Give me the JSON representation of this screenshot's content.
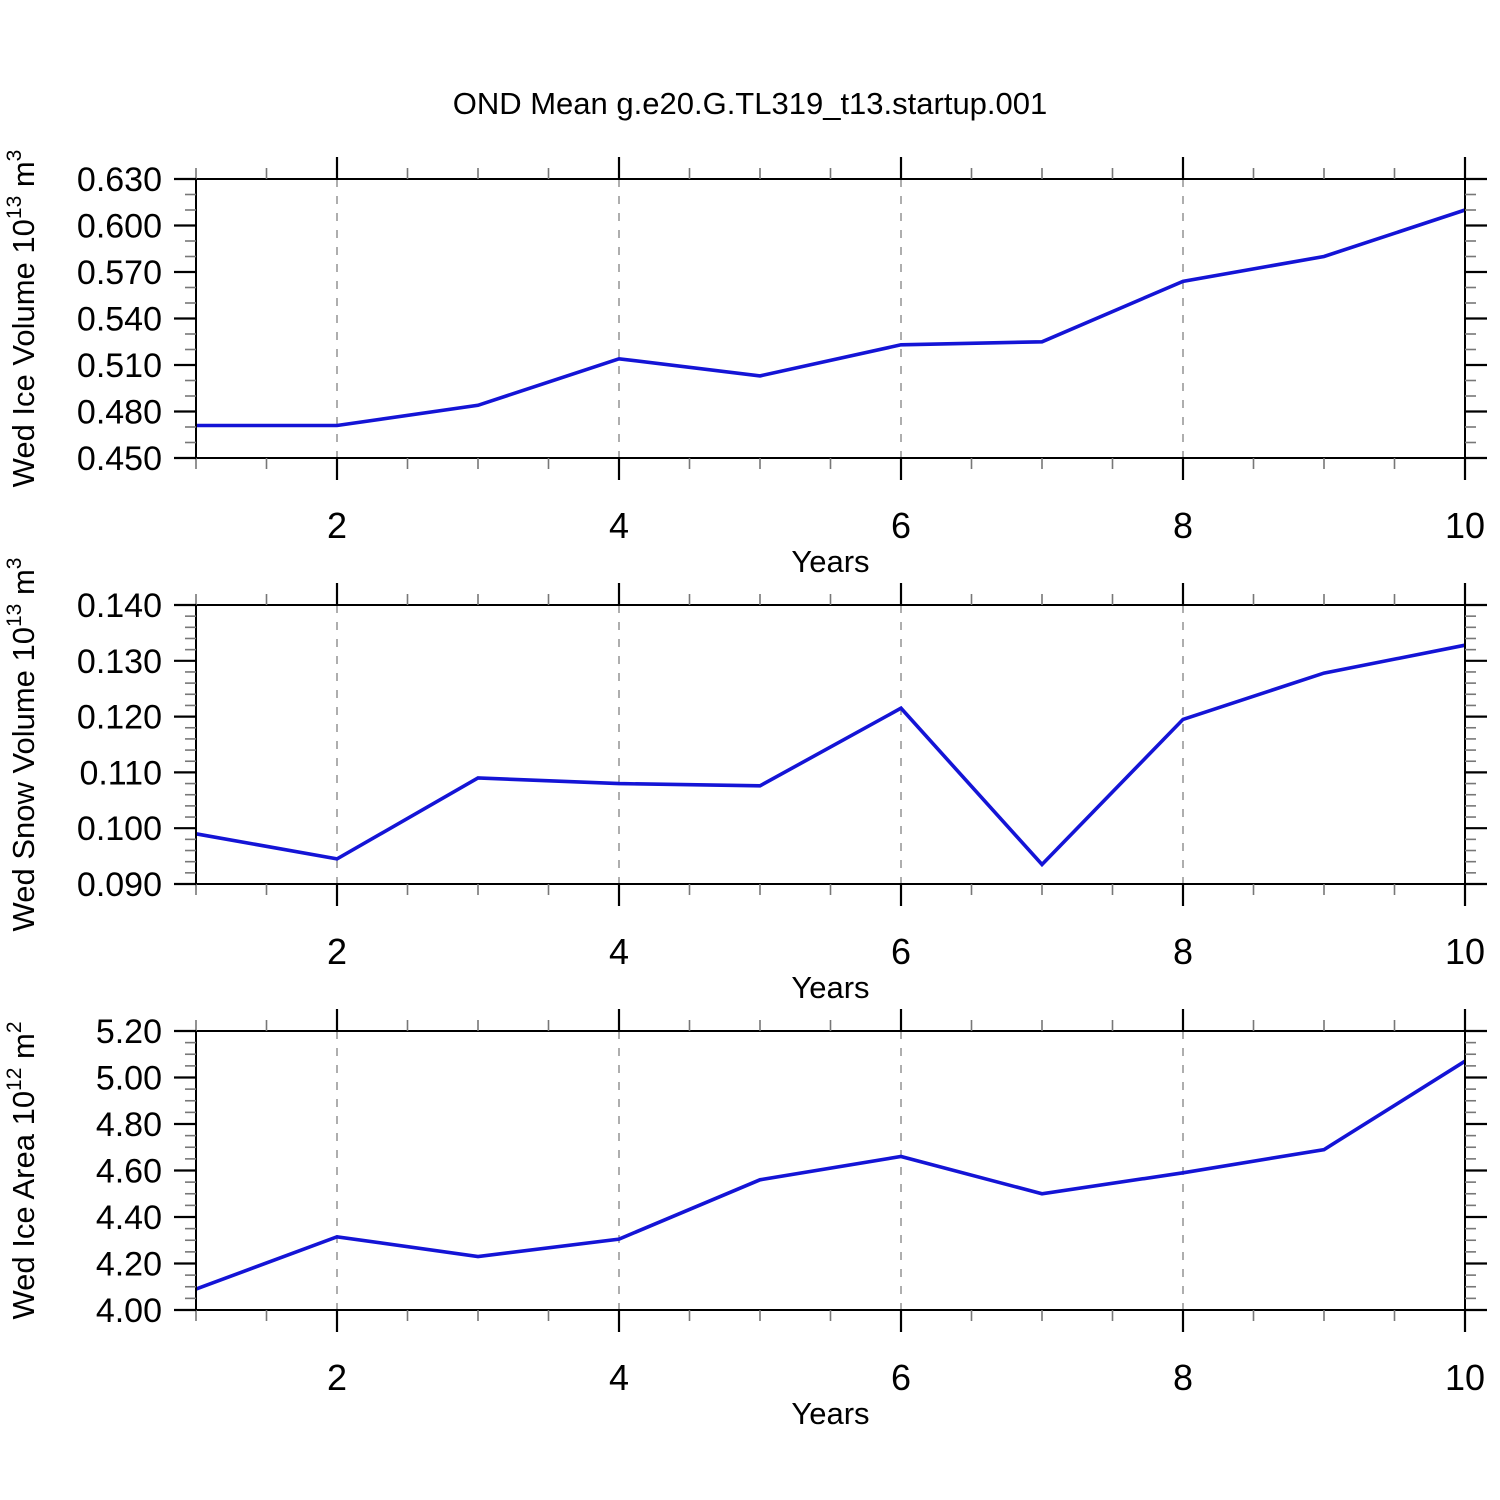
{
  "title": "OND Mean g.e20.G.TL319_t13.startup.001",
  "colors": {
    "background": "#ffffff",
    "line": "#1414d6",
    "axis": "#000000",
    "major_tick": "#000000",
    "minor_tick": "#777777",
    "gridline": "#8c8c8c",
    "text": "#000000"
  },
  "x_axis": {
    "label": "Years",
    "range": [
      1,
      10
    ],
    "major_ticks": [
      2,
      4,
      6,
      8,
      10
    ],
    "tick_labels": [
      "2",
      "4",
      "6",
      "8",
      "10"
    ],
    "minor_step": 0.5,
    "gridlines": [
      2,
      4,
      6,
      8
    ]
  },
  "chart_data": [
    {
      "type": "line",
      "name": "wed-ice-volume",
      "ylabel": "Wed Ice Volume 10^13 m^3",
      "ylabel_segments": [
        {
          "text": "Wed Ice Volume 10",
          "sup": false
        },
        {
          "text": "13",
          "sup": true
        },
        {
          "text": " m",
          "sup": false
        },
        {
          "text": "3",
          "sup": true
        }
      ],
      "xlabel": "Years",
      "x": [
        1,
        2,
        3,
        4,
        5,
        6,
        7,
        8,
        9,
        10
      ],
      "values": [
        0.471,
        0.471,
        0.484,
        0.514,
        0.503,
        0.523,
        0.525,
        0.564,
        0.58,
        0.61
      ],
      "ylim": [
        0.45,
        0.63
      ],
      "ytick_values": [
        0.45,
        0.48,
        0.51,
        0.54,
        0.57,
        0.6,
        0.63
      ],
      "ytick_labels": [
        "0.450",
        "0.480",
        "0.510",
        "0.540",
        "0.570",
        "0.600",
        "0.630"
      ],
      "y_minor_step": 0.01,
      "grid": "vertical-dashed"
    },
    {
      "type": "line",
      "name": "wed-snow-volume",
      "ylabel": "Wed Snow Volume 10^13 m^3",
      "ylabel_segments": [
        {
          "text": "Wed Snow Volume 10",
          "sup": false
        },
        {
          "text": "13",
          "sup": true
        },
        {
          "text": " m",
          "sup": false
        },
        {
          "text": "3",
          "sup": true
        }
      ],
      "xlabel": "Years",
      "x": [
        1,
        2,
        3,
        4,
        5,
        6,
        7,
        8,
        9,
        10
      ],
      "values": [
        0.099,
        0.0945,
        0.109,
        0.108,
        0.1076,
        0.1215,
        0.0935,
        0.1195,
        0.1278,
        0.1328
      ],
      "ylim": [
        0.09,
        0.14
      ],
      "ytick_values": [
        0.09,
        0.1,
        0.11,
        0.12,
        0.13,
        0.14
      ],
      "ytick_labels": [
        "0.090",
        "0.100",
        "0.110",
        "0.120",
        "0.130",
        "0.140"
      ],
      "y_minor_step": 0.002,
      "grid": "vertical-dashed"
    },
    {
      "type": "line",
      "name": "wed-ice-area",
      "ylabel": "Wed Ice Area 10^12 m^2",
      "ylabel_segments": [
        {
          "text": "Wed Ice Area 10",
          "sup": false
        },
        {
          "text": "12",
          "sup": true
        },
        {
          "text": " m",
          "sup": false
        },
        {
          "text": "2",
          "sup": true
        }
      ],
      "xlabel": "Years",
      "x": [
        1,
        2,
        3,
        4,
        5,
        6,
        7,
        8,
        9,
        10
      ],
      "values": [
        4.09,
        4.315,
        4.23,
        4.305,
        4.56,
        4.66,
        4.5,
        4.59,
        4.69,
        5.07
      ],
      "ylim": [
        4.0,
        5.2
      ],
      "ytick_values": [
        4.0,
        4.2,
        4.4,
        4.6,
        4.8,
        5.0,
        5.2
      ],
      "ytick_labels": [
        "4.00",
        "4.20",
        "4.40",
        "4.60",
        "4.80",
        "5.00",
        "5.20"
      ],
      "y_minor_step": 0.05,
      "grid": "vertical-dashed"
    }
  ]
}
